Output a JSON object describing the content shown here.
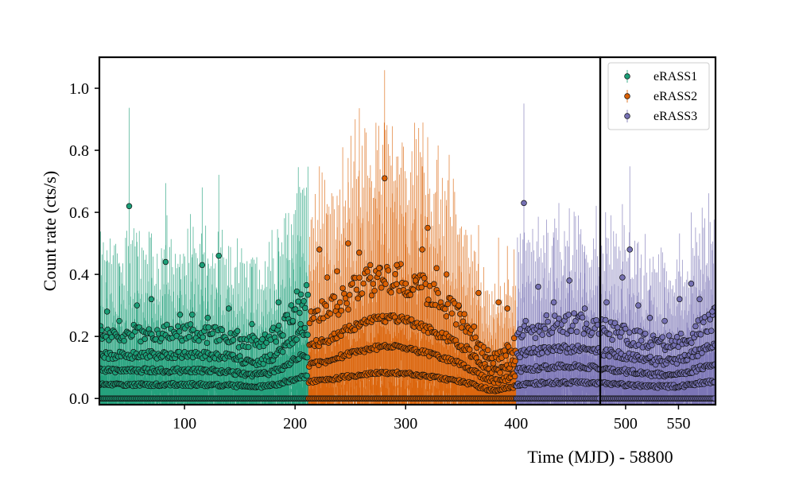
{
  "chart_data": {
    "type": "scatter",
    "xlabel": "Time (MJD) - 58800",
    "ylabel": "Count rate (cts/s)",
    "ylim": [
      -0.02,
      1.1
    ],
    "legend_position": "top-right",
    "grid": false,
    "broken_x_axis": true,
    "panels": [
      {
        "xlim": [
          23,
          476
        ],
        "xticks": [
          100,
          200,
          300,
          400
        ]
      },
      {
        "xlim": [
          476,
          585
        ],
        "xticks": [
          500,
          550
        ]
      }
    ],
    "yticks": [
      0.0,
      0.2,
      0.4,
      0.6,
      0.8,
      1.0
    ],
    "series": [
      {
        "name": "eRASS1",
        "color": "#1b9e77",
        "x_range": [
          23,
          212
        ],
        "peak_points": [
          [
            25,
            0.22
          ],
          [
            30,
            0.28
          ],
          [
            41,
            0.25
          ],
          [
            50,
            0.62
          ],
          [
            57,
            0.3
          ],
          [
            70,
            0.32
          ],
          [
            83,
            0.44
          ],
          [
            96,
            0.27
          ],
          [
            107,
            0.27
          ],
          [
            116,
            0.43
          ],
          [
            121,
            0.26
          ],
          [
            131,
            0.46
          ],
          [
            140,
            0.29
          ],
          [
            161,
            0.24
          ],
          [
            185,
            0.31
          ],
          [
            198,
            0.25
          ],
          [
            205,
            0.24
          ]
        ]
      },
      {
        "name": "eRASS2",
        "color": "#d95f02",
        "x_range": [
          212,
          400
        ],
        "peak_points": [
          [
            222,
            0.48
          ],
          [
            229,
            0.39
          ],
          [
            238,
            0.41
          ],
          [
            248,
            0.5
          ],
          [
            258,
            0.47
          ],
          [
            268,
            0.43
          ],
          [
            276,
            0.42
          ],
          [
            281,
            0.71
          ],
          [
            292,
            0.43
          ],
          [
            300,
            0.37
          ],
          [
            309,
            0.38
          ],
          [
            315,
            0.48
          ],
          [
            320,
            0.55
          ],
          [
            328,
            0.42
          ],
          [
            337,
            0.4
          ],
          [
            348,
            0.3
          ],
          [
            366,
            0.34
          ],
          [
            384,
            0.31
          ],
          [
            392,
            0.29
          ]
        ]
      },
      {
        "name": "eRASS3",
        "color": "#7570b3",
        "x_range": [
          400,
          585
        ],
        "peak_points": [
          [
            407,
            0.63
          ],
          [
            420,
            0.36
          ],
          [
            434,
            0.31
          ],
          [
            448,
            0.38
          ],
          [
            462,
            0.29
          ],
          [
            482,
            0.31
          ],
          [
            497,
            0.39
          ],
          [
            504,
            0.48
          ],
          [
            512,
            0.3
          ],
          [
            523,
            0.26
          ],
          [
            537,
            0.25
          ],
          [
            551,
            0.32
          ],
          [
            562,
            0.37
          ],
          [
            570,
            0.32
          ],
          [
            582,
            0.28
          ]
        ]
      }
    ]
  }
}
